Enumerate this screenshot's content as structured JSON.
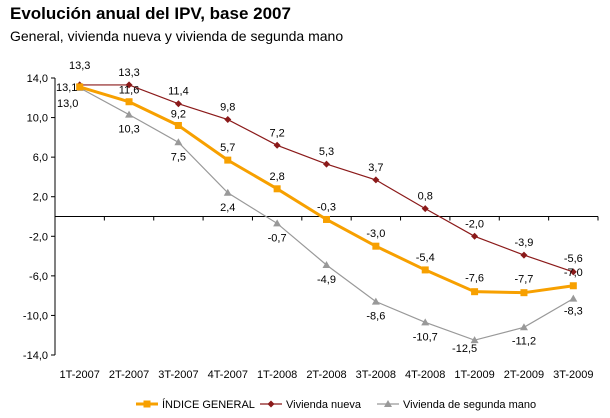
{
  "chart_data": {
    "type": "line",
    "title": "Evolución anual del IPV, base 2007",
    "subtitle": "General, vivienda nueva y vivienda de segunda mano",
    "categories": [
      "1T-2007",
      "2T-2007",
      "3T-2007",
      "4T-2007",
      "1T-2008",
      "2T-2008",
      "3T-2008",
      "4T-2008",
      "1T-2009",
      "2T-2009",
      "3T-2009"
    ],
    "ylim": [
      -14,
      14
    ],
    "yticks": [
      14,
      10,
      6,
      2,
      -2,
      -6,
      -10,
      -14
    ],
    "ytick_labels": [
      "14,0",
      "10,0",
      "6,0",
      "2,0",
      "-2,0",
      "-6,0",
      "-10,0",
      "-14,0"
    ],
    "grid": false,
    "legend_position": "bottom",
    "series": [
      {
        "name": "ÍNDICE GENERAL",
        "color": "#f7a000",
        "marker": "square",
        "values": [
          13.1,
          11.6,
          9.2,
          5.7,
          2.8,
          -0.3,
          -3.0,
          -5.4,
          -7.6,
          -7.7,
          -7.0
        ],
        "labels": [
          "13,1",
          "11,6",
          "9,2",
          "5,7",
          "2,8",
          "-0,3",
          "-3,0",
          "-5,4",
          "-7,6",
          "-7,7",
          "-7,0"
        ]
      },
      {
        "name": "Vivienda nueva",
        "color": "#8b1a1a",
        "marker": "diamond",
        "values": [
          13.3,
          13.3,
          11.4,
          9.8,
          7.2,
          5.3,
          3.7,
          0.8,
          -2.0,
          -3.9,
          -5.6
        ],
        "labels": [
          "13,3",
          "13,3",
          "11,4",
          "9,8",
          "7,2",
          "5,3",
          "3,7",
          "0,8",
          "-2,0",
          "-3,9",
          "-5,6"
        ]
      },
      {
        "name": "Vivienda de segunda mano",
        "color": "#999999",
        "marker": "triangle",
        "values": [
          13.0,
          10.3,
          7.5,
          2.4,
          -0.7,
          -4.9,
          -8.6,
          -10.7,
          -12.5,
          -11.2,
          -8.3
        ],
        "labels": [
          "13,0",
          "10,3",
          "7,5",
          "2,4",
          "-0,7",
          "-4,9",
          "-8,6",
          "-10,7",
          "-12,5",
          "-11,2",
          "-8,3"
        ]
      }
    ]
  }
}
